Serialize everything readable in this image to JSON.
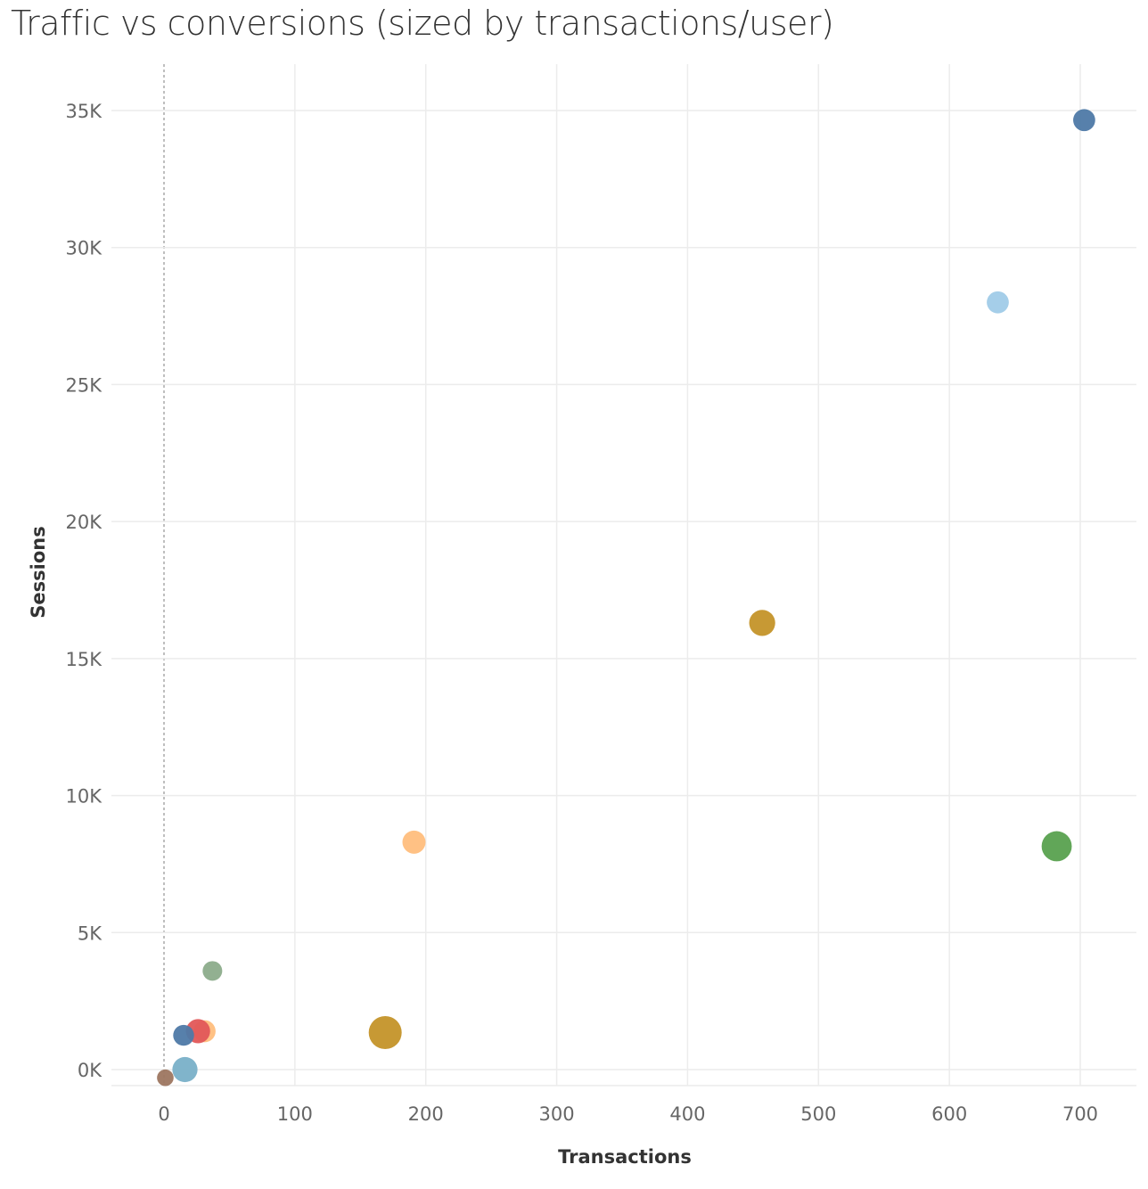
{
  "chart_data": {
    "type": "scatter",
    "title": "Traffic vs conversions (sized by transactions/user)",
    "xlabel": "Transactions",
    "ylabel": "Sessions",
    "xlim": [
      -40,
      730
    ],
    "ylim": [
      -500,
      35900
    ],
    "x_ticks": [
      0,
      100,
      200,
      300,
      400,
      500,
      600,
      700
    ],
    "x_tick_labels": [
      "0",
      "100",
      "200",
      "300",
      "400",
      "500",
      "600",
      "700"
    ],
    "y_ticks": [
      0,
      5000,
      10000,
      15000,
      20000,
      25000,
      30000,
      35000
    ],
    "y_tick_labels": [
      "0K",
      "5K",
      "10K",
      "15K",
      "20K",
      "25K",
      "30K",
      "35K"
    ],
    "grid": true,
    "legend": "none",
    "points": [
      {
        "x": 703,
        "y": 34650,
        "size": 0.35,
        "color": "#4e79a7"
      },
      {
        "x": 637,
        "y": 28000,
        "size": 0.35,
        "color": "#a0cbe8"
      },
      {
        "x": 457,
        "y": 16300,
        "size": 0.55,
        "color": "#c49429"
      },
      {
        "x": 191,
        "y": 8300,
        "size": 0.4,
        "color": "#ffbe7d"
      },
      {
        "x": 682,
        "y": 8150,
        "size": 0.8,
        "color": "#59a14f"
      },
      {
        "x": 37,
        "y": 3600,
        "size": 0.25,
        "color": "#8cac8b"
      },
      {
        "x": 31,
        "y": 1400,
        "size": 0.35,
        "color": "#ffbe7d"
      },
      {
        "x": 26,
        "y": 1400,
        "size": 0.45,
        "color": "#e15759"
      },
      {
        "x": 15,
        "y": 1250,
        "size": 0.3,
        "color": "#4e79a7"
      },
      {
        "x": 169,
        "y": 1350,
        "size": 1.0,
        "color": "#c49429"
      },
      {
        "x": 16,
        "y": 0,
        "size": 0.5,
        "color": "#79b0c8"
      },
      {
        "x": 1,
        "y": -300,
        "size": 0.15,
        "color": "#9d7660"
      }
    ]
  }
}
